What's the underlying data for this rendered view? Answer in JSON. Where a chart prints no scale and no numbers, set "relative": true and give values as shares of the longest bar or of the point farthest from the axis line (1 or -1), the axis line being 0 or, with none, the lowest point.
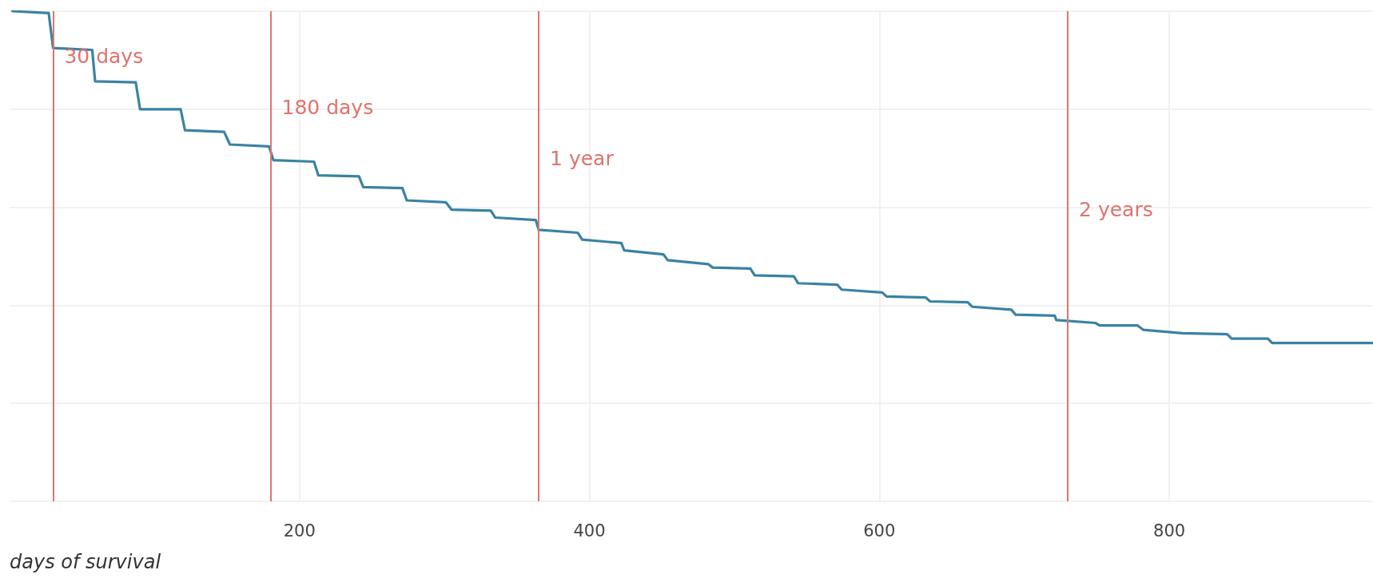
{
  "chart_data": {
    "type": "line",
    "xlabel": "days of survival",
    "relative": true,
    "xlim": [
      0,
      940
    ],
    "xticks": [
      200,
      400,
      600,
      800
    ],
    "grid": true,
    "marker": "none",
    "line_style": "solid",
    "series": [
      {
        "color": "#3a82a3",
        "x": [
          2,
          27,
          30,
          57,
          59,
          87,
          90,
          118,
          121,
          148,
          152,
          179,
          182,
          210,
          213,
          241,
          244,
          271,
          274,
          301,
          305,
          332,
          335,
          363,
          365,
          392,
          395,
          422,
          424,
          451,
          454,
          482,
          485,
          511,
          514,
          541,
          544,
          571,
          574,
          602,
          605,
          632,
          635,
          661,
          664,
          691,
          694,
          721,
          722,
          749,
          752,
          778,
          782,
          809,
          840,
          843,
          868,
          871,
          940
        ],
        "values": [
          1.0,
          0.996,
          0.925,
          0.921,
          0.857,
          0.855,
          0.8,
          0.8,
          0.757,
          0.754,
          0.728,
          0.724,
          0.696,
          0.693,
          0.665,
          0.663,
          0.641,
          0.639,
          0.614,
          0.61,
          0.595,
          0.593,
          0.579,
          0.574,
          0.554,
          0.548,
          0.534,
          0.527,
          0.512,
          0.504,
          0.492,
          0.484,
          0.477,
          0.475,
          0.461,
          0.459,
          0.445,
          0.442,
          0.432,
          0.426,
          0.418,
          0.416,
          0.408,
          0.406,
          0.397,
          0.391,
          0.381,
          0.379,
          0.37,
          0.364,
          0.359,
          0.359,
          0.35,
          0.343,
          0.341,
          0.332,
          0.332,
          0.323,
          0.323
        ]
      }
    ],
    "ref_lines": [
      {
        "axis": "x",
        "value": 30,
        "label": "30 days",
        "color": "#e0736e"
      },
      {
        "axis": "x",
        "value": 180,
        "label": "180 days",
        "color": "#e0736e"
      },
      {
        "axis": "x",
        "value": 365,
        "label": "1 year",
        "color": "#e0736e"
      },
      {
        "axis": "x",
        "value": 730,
        "label": "2 years",
        "color": "#e0736e"
      }
    ]
  }
}
